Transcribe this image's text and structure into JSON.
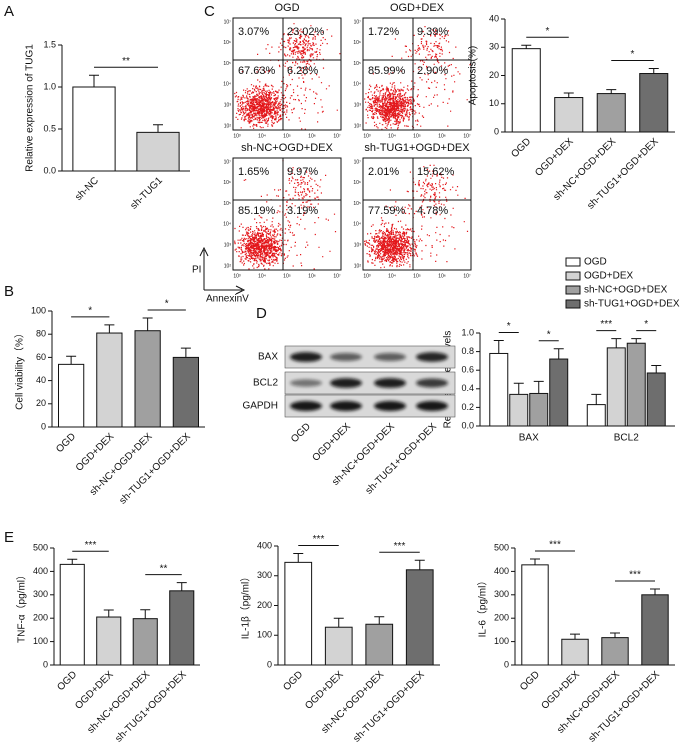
{
  "panel_labels": [
    "A",
    "B",
    "C",
    "D",
    "E"
  ],
  "flow_cytometry": {
    "plots": [
      {
        "title": "OGD",
        "quadrants": [
          "3.07%",
          "23.02%",
          "67.63%",
          "6.28%"
        ]
      },
      {
        "title": "OGD+DEX",
        "quadrants": [
          "1.72%",
          "9.39%",
          "85.99%",
          "2.90%"
        ]
      },
      {
        "title": "sh-NC+OGD+DEX",
        "quadrants": [
          "1.65%",
          "9.97%",
          "85.19%",
          "3.19%"
        ]
      },
      {
        "title": "sh-TUG1+OGD+DEX",
        "quadrants": [
          "2.01%",
          "15.62%",
          "77.59%",
          "4.78%"
        ]
      }
    ],
    "x_axis": "AnnexinV",
    "y_axis": "PI",
    "x_ticks": [
      "10³",
      "10⁴",
      "10⁵",
      "10⁶",
      "10⁷"
    ],
    "y_ticks": [
      "10²",
      "10³",
      "10⁴",
      "10⁵",
      "10⁶",
      "10⁷"
    ]
  },
  "western_blot": {
    "rows": [
      "BAX",
      "BCL2",
      "GAPDH"
    ],
    "lanes": [
      "OGD",
      "OGD+DEX",
      "sh-NC+OGD+DEX",
      "sh-TUG1+OGD+DEX"
    ]
  },
  "chart_data": [
    {
      "type": "bar",
      "ylabel": "Relative expression of TUG1",
      "categories": [
        "sh-NC",
        "sh-TUG1"
      ],
      "values": [
        1.0,
        0.46
      ],
      "errors": [
        0.14,
        0.09
      ],
      "colors": [
        "#ffffff",
        "#d3d3d3"
      ],
      "ylim": [
        0,
        1.5
      ],
      "yticks": [
        {
          "value": 0,
          "label": "0.0"
        },
        0.5,
        {
          "value": 1,
          "label": "1.0"
        },
        1.5
      ],
      "significance": [
        "**"
      ]
    },
    {
      "type": "bar",
      "ylabel": "Cell viability（%）",
      "categories": [
        "OGD",
        "OGD+DEX",
        "sh-NC+OGD+DEX",
        "sh-TUG1+OGD+DEX"
      ],
      "values": [
        54,
        81,
        83,
        60
      ],
      "errors": [
        7,
        7,
        11,
        8
      ],
      "colors": [
        "#ffffff",
        "#d3d3d3",
        "#a0a0a0",
        "#6e6e6e"
      ],
      "ylim": [
        0,
        100
      ],
      "yticks": [
        0,
        20,
        40,
        60,
        80,
        100
      ],
      "significance": [
        "*",
        "*"
      ]
    },
    {
      "type": "bar",
      "ylabel": "Apoptosis(%)",
      "categories": [
        "OGD",
        "OGD+DEX",
        "sh-NC+OGD+DEX",
        "sh-TUG1+OGD+DEX"
      ],
      "values": [
        29.5,
        12.2,
        13.6,
        20.7
      ],
      "errors": [
        1.2,
        1.6,
        1.4,
        1.8
      ],
      "colors": [
        "#ffffff",
        "#d3d3d3",
        "#a0a0a0",
        "#6e6e6e"
      ],
      "ylim": [
        0,
        40
      ],
      "yticks": [
        0,
        10,
        20,
        30,
        40
      ],
      "significance": [
        "*",
        "*"
      ]
    },
    {
      "type": "grouped_bar",
      "ylabel": "Relative protein levels",
      "categories": [
        "BAX",
        "BCL2"
      ],
      "series": [
        {
          "name": "OGD",
          "color": "#ffffff",
          "values": [
            0.78,
            0.23
          ],
          "errors": [
            0.14,
            0.11
          ]
        },
        {
          "name": "OGD+DEX",
          "color": "#d3d3d3",
          "values": [
            0.34,
            0.84
          ],
          "errors": [
            0.12,
            0.1
          ]
        },
        {
          "name": "sh-NC+OGD+DEX",
          "color": "#a0a0a0",
          "values": [
            0.35,
            0.89
          ],
          "errors": [
            0.13,
            0.05
          ]
        },
        {
          "name": "sh-TUG1+OGD+DEX",
          "color": "#6e6e6e",
          "values": [
            0.72,
            0.57
          ],
          "errors": [
            0.11,
            0.08
          ]
        }
      ],
      "ylim": [
        0,
        1.0
      ],
      "yticks": [
        {
          "value": 0,
          "label": "0.0"
        },
        0.2,
        0.4,
        0.6,
        0.8,
        {
          "value": 1,
          "label": "1.0"
        }
      ],
      "significance": [
        [
          "*",
          "*"
        ],
        [
          "***",
          "*"
        ]
      ]
    },
    {
      "type": "bar",
      "ylabel": "TNF-α（pg/ml）",
      "categories": [
        "OGD",
        "OGD+DEX",
        "sh-NC+OGD+DEX",
        "sh-TUG1+OGD+DEX"
      ],
      "values": [
        430,
        205,
        198,
        317
      ],
      "errors": [
        22,
        30,
        38,
        35
      ],
      "colors": [
        "#ffffff",
        "#d3d3d3",
        "#a0a0a0",
        "#6e6e6e"
      ],
      "ylim": [
        0,
        500
      ],
      "yticks": [
        0,
        100,
        200,
        300,
        400,
        500
      ],
      "significance": [
        "***",
        "**"
      ]
    },
    {
      "type": "bar",
      "ylabel": "IL-1β（pg/ml）",
      "categories": [
        "OGD",
        "OGD+DEX",
        "sh-NC+OGD+DEX",
        "sh-TUG1+OGD+DEX"
      ],
      "values": [
        345,
        127,
        137,
        320
      ],
      "errors": [
        30,
        30,
        25,
        32
      ],
      "colors": [
        "#ffffff",
        "#d3d3d3",
        "#a0a0a0",
        "#6e6e6e"
      ],
      "ylim": [
        0,
        400
      ],
      "yticks": [
        0,
        100,
        200,
        300,
        400
      ],
      "significance": [
        "***",
        "***"
      ]
    },
    {
      "type": "bar",
      "ylabel": "IL-6（pg/ml）",
      "categories": [
        "OGD",
        "OGD+DEX",
        "sh-NC+OGD+DEX",
        "sh-TUG1+OGD+DEX"
      ],
      "values": [
        428,
        110,
        117,
        300
      ],
      "errors": [
        25,
        22,
        20,
        25
      ],
      "colors": [
        "#ffffff",
        "#d3d3d3",
        "#a0a0a0",
        "#6e6e6e"
      ],
      "ylim": [
        0,
        500
      ],
      "yticks": [
        0,
        100,
        200,
        300,
        400,
        500
      ],
      "significance": [
        "***",
        "***"
      ]
    }
  ]
}
